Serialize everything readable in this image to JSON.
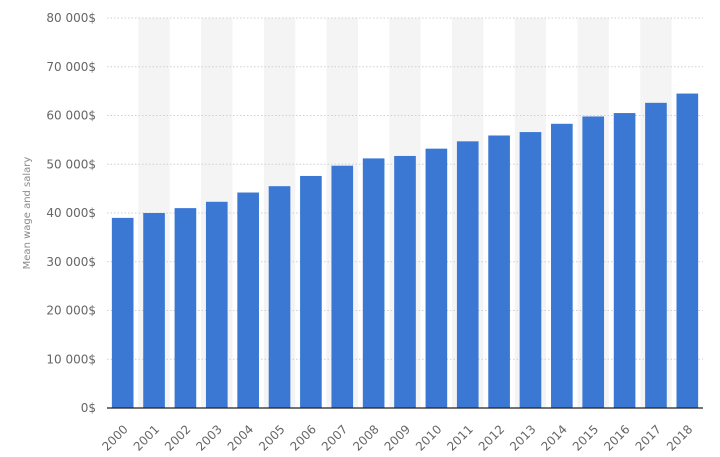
{
  "chart_data": {
    "type": "bar",
    "title": "",
    "xlabel": "",
    "ylabel": "Mean wage and salary",
    "categories": [
      "2000",
      "2001",
      "2002",
      "2003",
      "2004",
      "2005",
      "2006",
      "2007",
      "2008",
      "2009",
      "2010",
      "2011",
      "2012",
      "2013",
      "2014",
      "2015",
      "2016",
      "2017",
      "2018"
    ],
    "series": [
      {
        "values": [
          39000,
          40000,
          41000,
          42300,
          44200,
          45500,
          47600,
          49700,
          51200,
          51700,
          53200,
          54700,
          55900,
          56600,
          58300,
          59800,
          60500,
          62600,
          64500
        ]
      }
    ],
    "ylim": [
      0,
      80000
    ],
    "yticks": [
      0,
      10000,
      20000,
      30000,
      40000,
      50000,
      60000,
      70000,
      80000
    ],
    "ytick_labels": [
      "0$",
      "10 000$",
      "20 000$",
      "30 000$",
      "40 000$",
      "50 000$",
      "60 000$",
      "70 000$",
      "80 000$"
    ],
    "grid": true,
    "legend": "none",
    "colors": {
      "bar": "#3a78d4",
      "band": "#f4f4f4",
      "grid": "#cfcfcf",
      "axis": "#222222",
      "text": "#666666"
    }
  }
}
